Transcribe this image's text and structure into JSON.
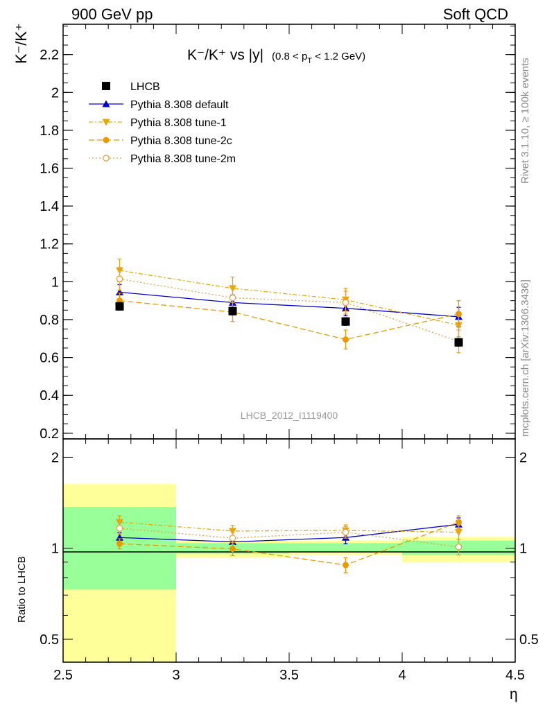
{
  "header": {
    "left": "900 GeV pp",
    "right": "Soft QCD"
  },
  "side_labels": {
    "rivet": "Rivet 3.1.10, ≥ 100k events",
    "mcplots": "mcplots.cern.ch [arXiv:1306.3436]"
  },
  "watermark": "LHCB_2012_I1119400",
  "chart_data": [
    {
      "type": "scatter",
      "title_main": "K⁻/K⁺ vs |y|",
      "title_sub": "(0.8 < p_T < 1.2 GeV)",
      "ylabel": "K⁻/K⁺",
      "xlabel": "η",
      "xlim": [
        2.5,
        4.5
      ],
      "ylim": [
        0.17,
        2.36
      ],
      "xticks": [
        "2.5",
        "3",
        "3.5",
        "4",
        "4.5"
      ],
      "yticks": [
        "0.2",
        "0.4",
        "0.6",
        "0.8",
        "1",
        "1.2",
        "1.4",
        "1.6",
        "1.8",
        "2",
        "2.2"
      ],
      "legend_position": "top-left",
      "series": [
        {
          "name": "LHCB",
          "color": "#000000",
          "marker": "square",
          "line": "none",
          "x": [
            2.75,
            3.25,
            3.75,
            4.25
          ],
          "y": [
            0.87,
            0.845,
            0.79,
            0.68
          ],
          "err": [
            0.02,
            0.02,
            0.02,
            0.02
          ]
        },
        {
          "name": "Pythia 8.308 default",
          "color": "#0000cc",
          "marker": "triangle-up",
          "line": "solid",
          "x": [
            2.75,
            3.25,
            3.75,
            4.25
          ],
          "y": [
            0.945,
            0.89,
            0.86,
            0.815
          ],
          "err": [
            0.04,
            0.04,
            0.04,
            0.05
          ]
        },
        {
          "name": "Pythia 8.308 tune-1",
          "color": "#e8a800",
          "marker": "triangle-down",
          "line": "dashdot",
          "x": [
            2.75,
            3.25,
            3.75,
            4.25
          ],
          "y": [
            1.06,
            0.965,
            0.905,
            0.77
          ],
          "err": [
            0.06,
            0.06,
            0.06,
            0.06
          ]
        },
        {
          "name": "Pythia 8.308 tune-2c",
          "color": "#e89a00",
          "marker": "circle",
          "line": "dashed",
          "x": [
            2.75,
            3.25,
            3.75,
            4.25
          ],
          "y": [
            0.9,
            0.84,
            0.695,
            0.83
          ],
          "err": [
            0.04,
            0.05,
            0.05,
            0.07
          ]
        },
        {
          "name": "Pythia 8.308 tune-2m",
          "color": "#e8a040",
          "marker": "circle-open",
          "line": "dotted",
          "x": [
            2.75,
            3.25,
            3.75,
            4.25
          ],
          "y": [
            1.015,
            0.915,
            0.89,
            0.685
          ],
          "err": [
            0.06,
            0.06,
            0.06,
            0.06
          ]
        }
      ]
    },
    {
      "type": "scatter",
      "ylabel": "Ratio to LHCB",
      "xlabel": "η",
      "xlim": [
        2.5,
        4.5
      ],
      "ylim": [
        0.42,
        2.3
      ],
      "ylog": true,
      "yticks": [
        "0.5",
        "1",
        "2"
      ],
      "bands": [
        {
          "x": [
            2.5,
            3.0
          ],
          "yellow": [
            0.42,
            1.63
          ],
          "green": [
            0.73,
            1.37
          ]
        },
        {
          "x": [
            3.0,
            3.5
          ],
          "yellow": [
            0.93,
            1.06
          ],
          "green": [
            0.96,
            1.04
          ]
        },
        {
          "x": [
            3.5,
            4.0
          ],
          "yellow": [
            0.95,
            1.06
          ],
          "green": [
            0.97,
            1.04
          ]
        },
        {
          "x": [
            4.0,
            4.5
          ],
          "yellow": [
            0.9,
            1.09
          ],
          "green": [
            0.95,
            1.06
          ]
        }
      ],
      "series": [
        {
          "name": "Pythia 8.308 default",
          "x": [
            2.75,
            3.25,
            3.75,
            4.25
          ],
          "y": [
            1.085,
            1.05,
            1.085,
            1.2
          ],
          "err": [
            0.04,
            0.04,
            0.05,
            0.06
          ]
        },
        {
          "name": "Pythia 8.308 tune-1",
          "x": [
            2.75,
            3.25,
            3.75,
            4.25
          ],
          "y": [
            1.22,
            1.14,
            1.145,
            1.13
          ],
          "err": [
            0.06,
            0.05,
            0.05,
            0.06
          ]
        },
        {
          "name": "Pythia 8.308 tune-2c",
          "x": [
            2.75,
            3.25,
            3.75,
            4.25
          ],
          "y": [
            1.035,
            0.995,
            0.88,
            1.22
          ],
          "err": [
            0.04,
            0.05,
            0.05,
            0.06
          ]
        },
        {
          "name": "Pythia 8.308 tune-2m",
          "x": [
            2.75,
            3.25,
            3.75,
            4.25
          ],
          "y": [
            1.165,
            1.08,
            1.13,
            1.01
          ],
          "err": [
            0.05,
            0.05,
            0.05,
            0.06
          ]
        }
      ]
    }
  ]
}
